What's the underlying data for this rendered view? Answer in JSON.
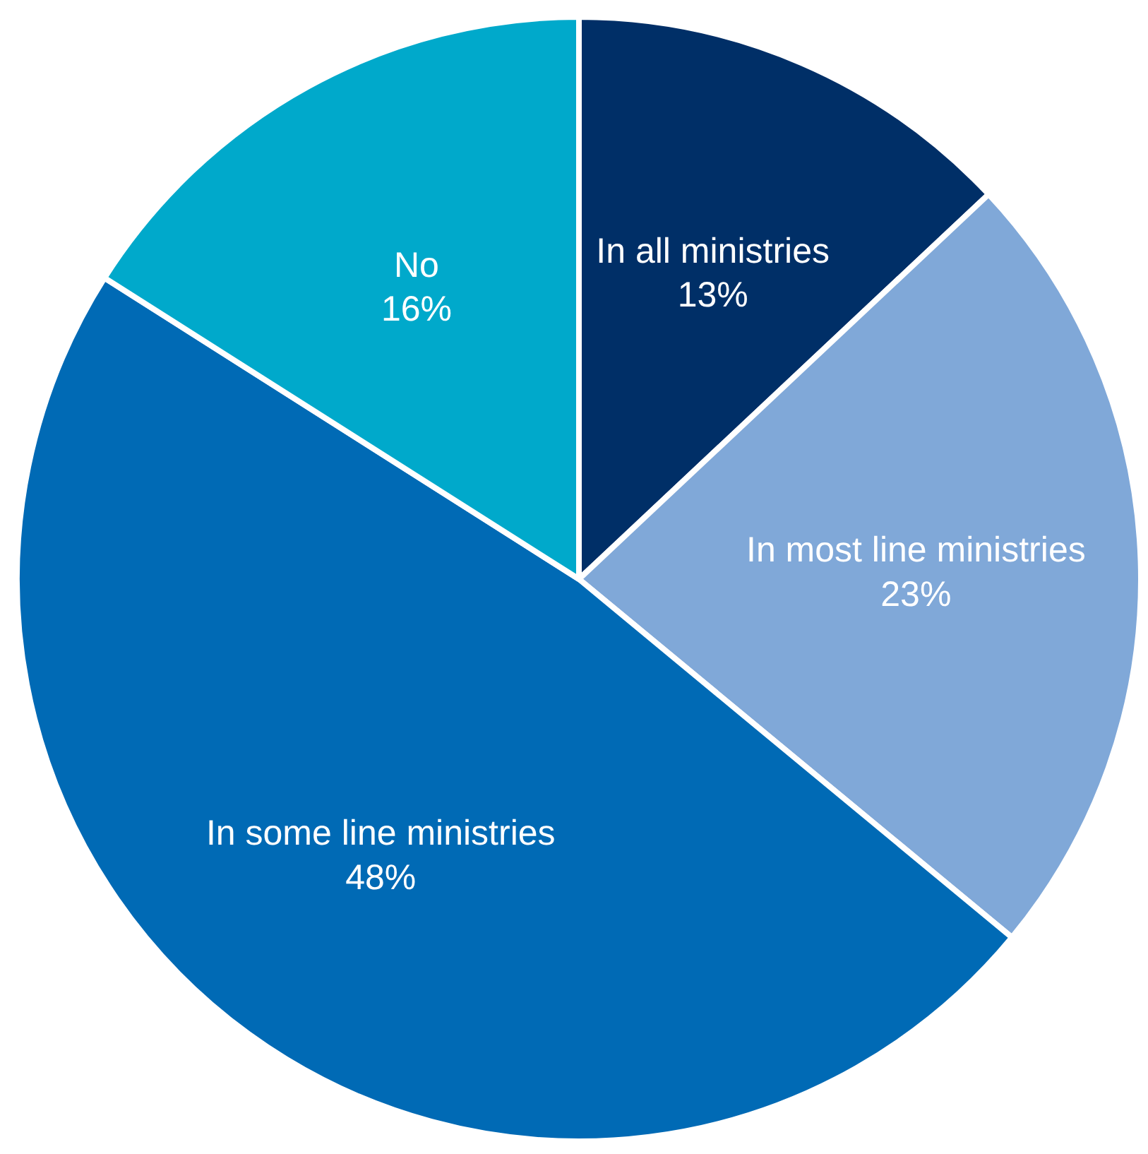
{
  "chart_data": {
    "type": "pie",
    "categories": [
      "In all ministries",
      "In most line ministries",
      "In some line ministries",
      "No"
    ],
    "values": [
      13,
      23,
      48,
      16
    ],
    "colors": [
      "#002f67",
      "#80a8d8",
      "#006ab5",
      "#00a9cb"
    ],
    "value_labels": [
      "13%",
      "23%",
      "48%",
      "16%"
    ]
  }
}
